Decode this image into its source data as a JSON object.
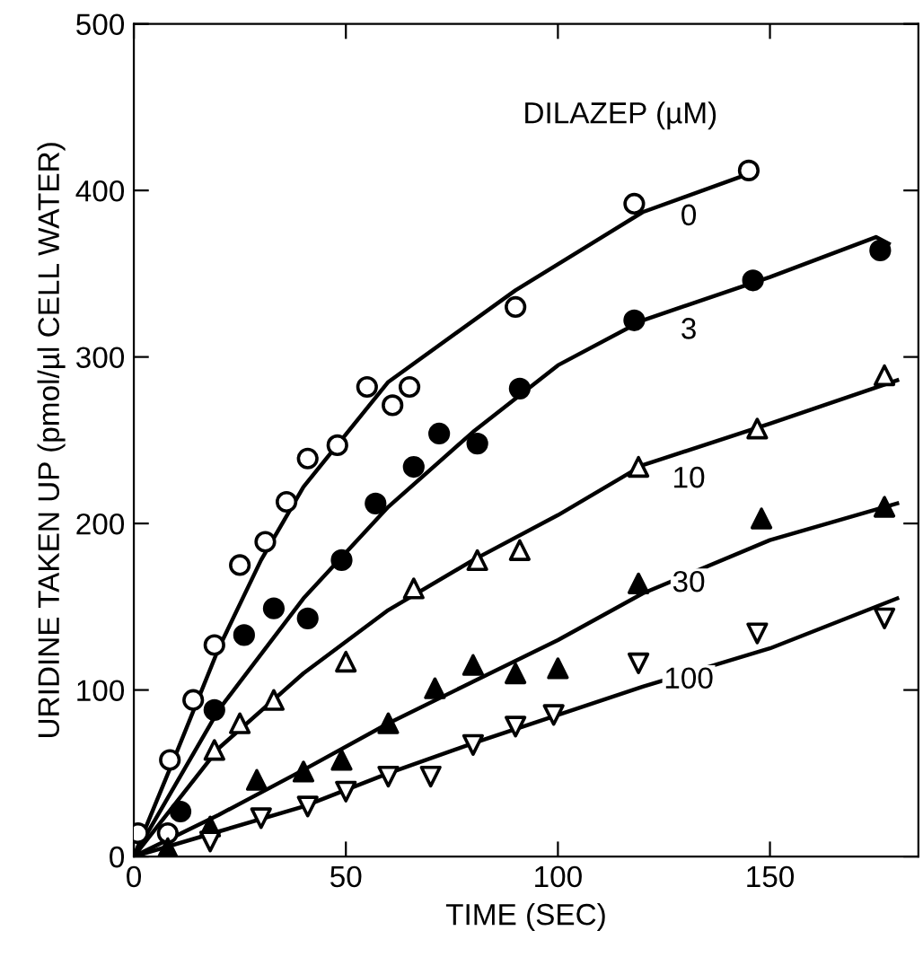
{
  "chart_data": {
    "type": "scatter",
    "xlabel": "TIME (SEC)",
    "ylabel": "URIDINE TAKEN UP (pmol/µl CELL WATER)",
    "legend_title": "DILAZEP (µM)",
    "xlim": [
      0,
      185
    ],
    "ylim": [
      0,
      500
    ],
    "xticks": [
      0,
      50,
      100,
      150
    ],
    "yticks": [
      0,
      100,
      200,
      300,
      400,
      500
    ],
    "grid": false,
    "series": [
      {
        "name": "0",
        "marker": "circle",
        "color": "#ffffff",
        "x": [
          1,
          8,
          8.5,
          14,
          19,
          25,
          31,
          36,
          41,
          48,
          55,
          61,
          65,
          90,
          118,
          145
        ],
        "values": [
          14,
          14,
          58,
          94,
          127,
          175,
          189,
          213,
          239,
          247,
          282,
          271,
          282,
          330,
          392,
          412
        ]
      },
      {
        "name": "3",
        "marker": "circle",
        "color": "#000000",
        "x": [
          11,
          19,
          26,
          33,
          41,
          49,
          57,
          66,
          72,
          81,
          91,
          118,
          146,
          176
        ],
        "values": [
          27,
          88,
          133,
          149,
          143,
          178,
          212,
          234,
          254,
          248,
          281,
          322,
          346,
          364
        ]
      },
      {
        "name": "10",
        "marker": "triangle",
        "color": "#ffffff",
        "x": [
          19,
          25,
          33,
          50,
          66,
          81,
          91,
          119,
          147,
          177
        ],
        "values": [
          64,
          80,
          94,
          117,
          161,
          178,
          184,
          234,
          257,
          289
        ]
      },
      {
        "name": "30",
        "marker": "triangle",
        "color": "#000000",
        "x": [
          8,
          18,
          29,
          40,
          49,
          60,
          71,
          80,
          90,
          100,
          119,
          148,
          177
        ],
        "values": [
          5,
          18,
          46,
          51,
          58,
          80,
          101,
          115,
          110,
          113,
          164,
          203,
          210
        ]
      },
      {
        "name": "100",
        "marker": "triangle_down",
        "color": "#ffffff",
        "x": [
          18,
          30,
          41,
          50,
          60,
          70,
          80,
          90,
          99,
          119,
          147,
          177
        ],
        "values": [
          9,
          23,
          30,
          39,
          48,
          48,
          67,
          78,
          85,
          116,
          134,
          143
        ]
      },
      {
        "type": "line",
        "marker": "none",
        "line_style": "solid",
        "color": "#000000",
        "x": [
          0,
          10,
          20,
          30,
          40,
          60,
          90,
          120,
          145
        ],
        "values": [
          0,
          62,
          125,
          178,
          222,
          285,
          340,
          387,
          410
        ]
      },
      {
        "type": "line",
        "marker": "none",
        "line_style": "solid",
        "color": "#000000",
        "x": [
          0,
          20,
          40,
          60,
          80,
          100,
          120,
          150,
          175,
          178
        ],
        "values": [
          0,
          88,
          155,
          210,
          255,
          295,
          322,
          348,
          372,
          368
        ]
      },
      {
        "type": "line",
        "marker": "none",
        "line_style": "solid",
        "color": "#000000",
        "x": [
          0,
          20,
          40,
          60,
          80,
          100,
          120,
          150,
          180
        ],
        "values": [
          0,
          65,
          110,
          148,
          178,
          205,
          235,
          260,
          286
        ]
      },
      {
        "type": "line",
        "marker": "none",
        "line_style": "solid",
        "color": "#000000",
        "x": [
          0,
          20,
          40,
          60,
          80,
          100,
          120,
          150,
          180
        ],
        "values": [
          0,
          25,
          52,
          80,
          105,
          130,
          158,
          190,
          212
        ]
      },
      {
        "type": "line",
        "marker": "none",
        "line_style": "solid",
        "color": "#000000",
        "x": [
          0,
          20,
          40,
          60,
          80,
          100,
          120,
          150,
          180
        ],
        "values": [
          0,
          15,
          30,
          50,
          68,
          85,
          102,
          125,
          155
        ]
      }
    ]
  }
}
